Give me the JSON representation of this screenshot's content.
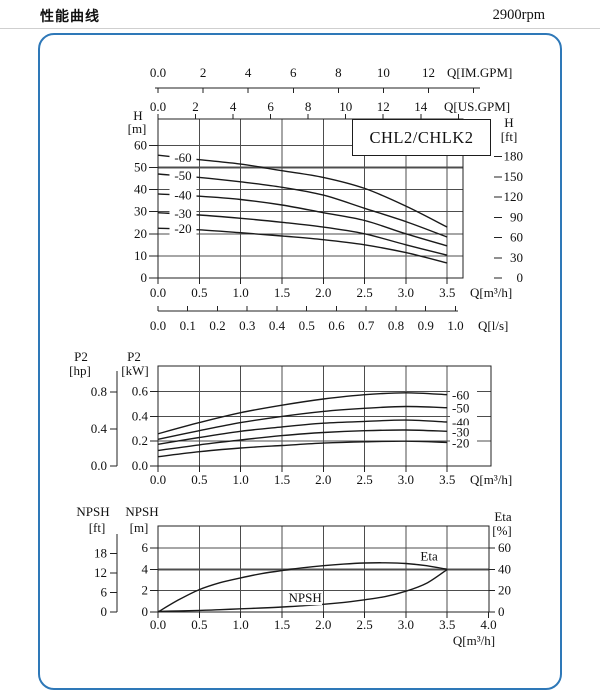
{
  "header": {
    "title": "性能曲线",
    "rpm": "2900rpm"
  },
  "model_box": {
    "label": "CHL2/CHLK2"
  },
  "colors": {
    "frame_blue": "#2e78b8",
    "curve": "#1a1a1a",
    "grid": "#4d4d4d",
    "border": "#222222",
    "ref_gray": "#a8a8a8",
    "text": "#111111",
    "rule_gray": "#cfcfcf"
  },
  "chart_data": [
    {
      "type": "line",
      "title": "CHL2/CHLK2",
      "x_unit": "m3/h",
      "x_values": [
        0,
        0.5,
        1.0,
        1.5,
        2.0,
        2.5,
        3.0,
        3.5
      ],
      "series": [
        {
          "label": "-60",
          "values": [
            55.5,
            53.5,
            51.5,
            48.5,
            45.5,
            40.5,
            32.5,
            23.0
          ]
        },
        {
          "label": "-50",
          "values": [
            47.0,
            45.5,
            43.5,
            41.0,
            37.5,
            31.5,
            25.5,
            18.5
          ]
        },
        {
          "label": "-40",
          "values": [
            38.0,
            37.0,
            35.5,
            33.0,
            29.5,
            26.0,
            20.0,
            14.5
          ]
        },
        {
          "label": "-30",
          "values": [
            29.5,
            28.5,
            27.0,
            25.2,
            23.0,
            20.0,
            15.0,
            10.3
          ]
        },
        {
          "label": "-20",
          "values": [
            22.5,
            21.8,
            20.5,
            19.0,
            17.3,
            15.0,
            11.5,
            6.8
          ]
        }
      ],
      "y_left": {
        "name": "H",
        "unit": "[m]",
        "ticks": [
          0,
          10,
          20,
          30,
          40,
          50,
          60
        ],
        "tick_labels": [
          "0",
          "10",
          "20",
          "30",
          "40",
          "50",
          "60"
        ]
      },
      "y_right": {
        "name": "H",
        "unit": "[ft]",
        "ticks": [
          0,
          30,
          60,
          90,
          120,
          150,
          180
        ],
        "tick_labels": [
          "0",
          "30",
          "60",
          "90",
          "120",
          "150",
          "180"
        ],
        "m_per_ft": 0.3048
      },
      "ref_line_m": 50,
      "x_axis_m3h": {
        "label": "Q[m³/h]",
        "ticks": [
          0,
          0.5,
          1,
          1.5,
          2,
          2.5,
          3,
          3.5
        ],
        "tick_labels": [
          "0.0",
          "0.5",
          "1.0",
          "1.5",
          "2.0",
          "2.5",
          "3.0",
          "3.5"
        ]
      },
      "x_axis_im_gpm": {
        "label": "Q[IM.GPM]",
        "gpm_per_m3h": 3.6661,
        "ticks": [
          0,
          2,
          4,
          6,
          8,
          10,
          12
        ],
        "tick_labels": [
          "0.0",
          "2",
          "4",
          "6",
          "8",
          "10",
          "12"
        ],
        "extra_ticks": [
          14
        ]
      },
      "x_axis_us_gpm": {
        "label": "Q[US.GPM]",
        "gpm_per_m3h": 4.4029,
        "ticks": [
          0,
          2,
          4,
          6,
          8,
          10,
          12,
          14
        ],
        "tick_labels": [
          "0.0",
          "2",
          "4",
          "6",
          "8",
          "10",
          "12",
          "14"
        ],
        "extra_ticks": [
          16
        ]
      },
      "x_axis_l_s": {
        "label": "Q[l/s]",
        "ls_per_m3h": 0.2778,
        "ticks": [
          0,
          0.1,
          0.2,
          0.3,
          0.4,
          0.5,
          0.6,
          0.7,
          0.8,
          0.9,
          1.0
        ],
        "tick_labels": [
          "0.0",
          "0.1",
          "0.2",
          "0.3",
          "0.4",
          "0.5",
          "0.6",
          "0.7",
          "0.8",
          "0.9",
          "1.0"
        ]
      }
    },
    {
      "type": "line",
      "x_unit": "m3/h",
      "x_values": [
        0,
        0.5,
        1.0,
        1.5,
        2.0,
        2.5,
        3.0,
        3.5
      ],
      "series": [
        {
          "label": "-60",
          "values": [
            0.26,
            0.35,
            0.43,
            0.49,
            0.54,
            0.575,
            0.59,
            0.575
          ]
        },
        {
          "label": "-50",
          "values": [
            0.215,
            0.285,
            0.35,
            0.4,
            0.44,
            0.465,
            0.48,
            0.47
          ]
        },
        {
          "label": "-40",
          "values": [
            0.175,
            0.23,
            0.28,
            0.315,
            0.345,
            0.36,
            0.37,
            0.355
          ]
        },
        {
          "label": "-30",
          "values": [
            0.125,
            0.17,
            0.21,
            0.245,
            0.27,
            0.285,
            0.29,
            0.28
          ]
        },
        {
          "label": "-20",
          "values": [
            0.075,
            0.115,
            0.145,
            0.165,
            0.185,
            0.195,
            0.2,
            0.19
          ]
        }
      ],
      "y_left_outer": {
        "name": "P2",
        "unit": "[hp]",
        "ticks": [
          0,
          0.4,
          0.8
        ],
        "tick_labels": [
          "0.0",
          "0.4",
          "0.8"
        ],
        "kw_per_hp": 0.7457
      },
      "y_left_inner": {
        "name": "P2",
        "unit": "[kW]",
        "ticks": [
          0,
          0.2,
          0.4,
          0.6
        ],
        "tick_labels": [
          "0.0",
          "0.2",
          "0.4",
          "0.6"
        ]
      },
      "x_axis_m3h": {
        "label": "Q[m³/h]",
        "ticks": [
          0,
          0.5,
          1,
          1.5,
          2,
          2.5,
          3,
          3.5
        ],
        "tick_labels": [
          "0.0",
          "0.5",
          "1.0",
          "1.5",
          "2.0",
          "2.5",
          "3.0",
          "3.5"
        ]
      }
    },
    {
      "type": "line",
      "x_unit": "m3/h",
      "x_values": [
        0,
        0.25,
        0.5,
        0.75,
        1.0,
        1.25,
        1.5,
        1.75,
        2.0,
        2.25,
        2.5,
        2.75,
        3.0,
        3.25,
        3.5
      ],
      "series": [
        {
          "label": "Eta",
          "axis": "eta_pct",
          "values": [
            0,
            11.5,
            21,
            27.5,
            32,
            36,
            39,
            41.5,
            43.5,
            45,
            46,
            46.2,
            45.5,
            43.5,
            40
          ],
          "label_x": 3.28,
          "label_y": 52
        },
        {
          "label": "NPSH",
          "axis": "npsh_m",
          "values": [
            0.05,
            0.1,
            0.15,
            0.22,
            0.3,
            0.38,
            0.47,
            0.58,
            0.72,
            0.9,
            1.15,
            1.45,
            1.95,
            2.7,
            4.0
          ],
          "label_x": 1.78,
          "label_y": 1.3
        }
      ],
      "y_left_outer": {
        "name": "NPSH",
        "unit": "[ft]",
        "ticks": [
          0,
          6,
          12,
          18
        ],
        "tick_labels": [
          "0",
          "6",
          "12",
          "18"
        ],
        "m_per_ft": 0.3048
      },
      "y_left_inner": {
        "name": "NPSH",
        "unit": "[m]",
        "ticks": [
          0,
          2,
          4,
          6
        ],
        "tick_labels": [
          "0",
          "2",
          "4",
          "6"
        ]
      },
      "y_right": {
        "name": "Eta",
        "unit": "[%]",
        "ticks": [
          0,
          20,
          40,
          60
        ],
        "tick_labels": [
          "0",
          "20",
          "40",
          "60"
        ]
      },
      "ref_line_pct": 40,
      "x_axis_m3h": {
        "label": "Q[m³/h]",
        "ticks": [
          0,
          0.5,
          1,
          1.5,
          2,
          2.5,
          3,
          3.5,
          4
        ],
        "tick_labels": [
          "0.0",
          "0.5",
          "1.0",
          "1.5",
          "2.0",
          "2.5",
          "3.0",
          "3.5",
          "4.0"
        ]
      }
    }
  ]
}
